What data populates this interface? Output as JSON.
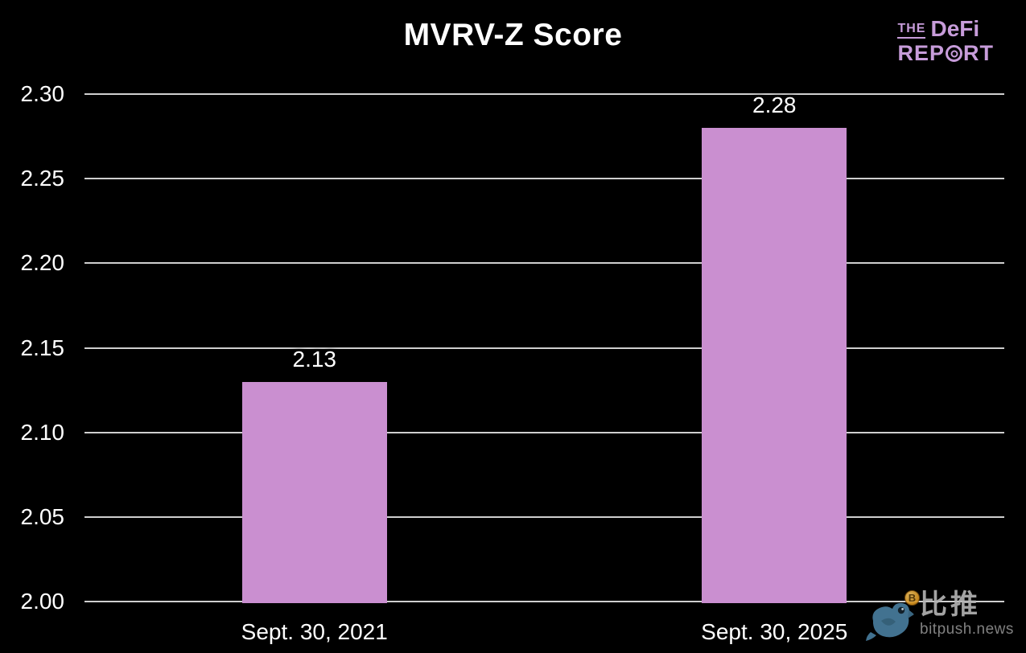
{
  "header": {
    "title": "MVRV-Z Score"
  },
  "logo": {
    "the": "THE",
    "defi": "DeFi",
    "rep": "REP",
    "rt": "RT",
    "color": "#c79cda"
  },
  "chart_data": {
    "type": "bar",
    "title": "MVRV-Z Score",
    "categories": [
      "Sept. 30, 2021",
      "Sept. 30, 2025"
    ],
    "values": [
      2.13,
      2.28
    ],
    "value_labels": [
      "2.13",
      "2.28"
    ],
    "xlabel": "",
    "ylabel": "",
    "ylim": [
      2.0,
      2.3
    ],
    "ytick_step": 0.05,
    "yticks": [
      "2.00",
      "2.05",
      "2.10",
      "2.15",
      "2.20",
      "2.25",
      "2.30"
    ],
    "grid": true,
    "legend": false,
    "bar_color": "#ca8fd0",
    "grid_color": "#cfcfcf",
    "text_color": "#ffffff",
    "background": "#000000"
  },
  "watermark": {
    "cn_name": "比推",
    "site": "bitpush.news",
    "bird_icon": "twitter-bird-icon",
    "coin_icon": "bitcoin-coin-icon",
    "coin_letter": "B"
  }
}
